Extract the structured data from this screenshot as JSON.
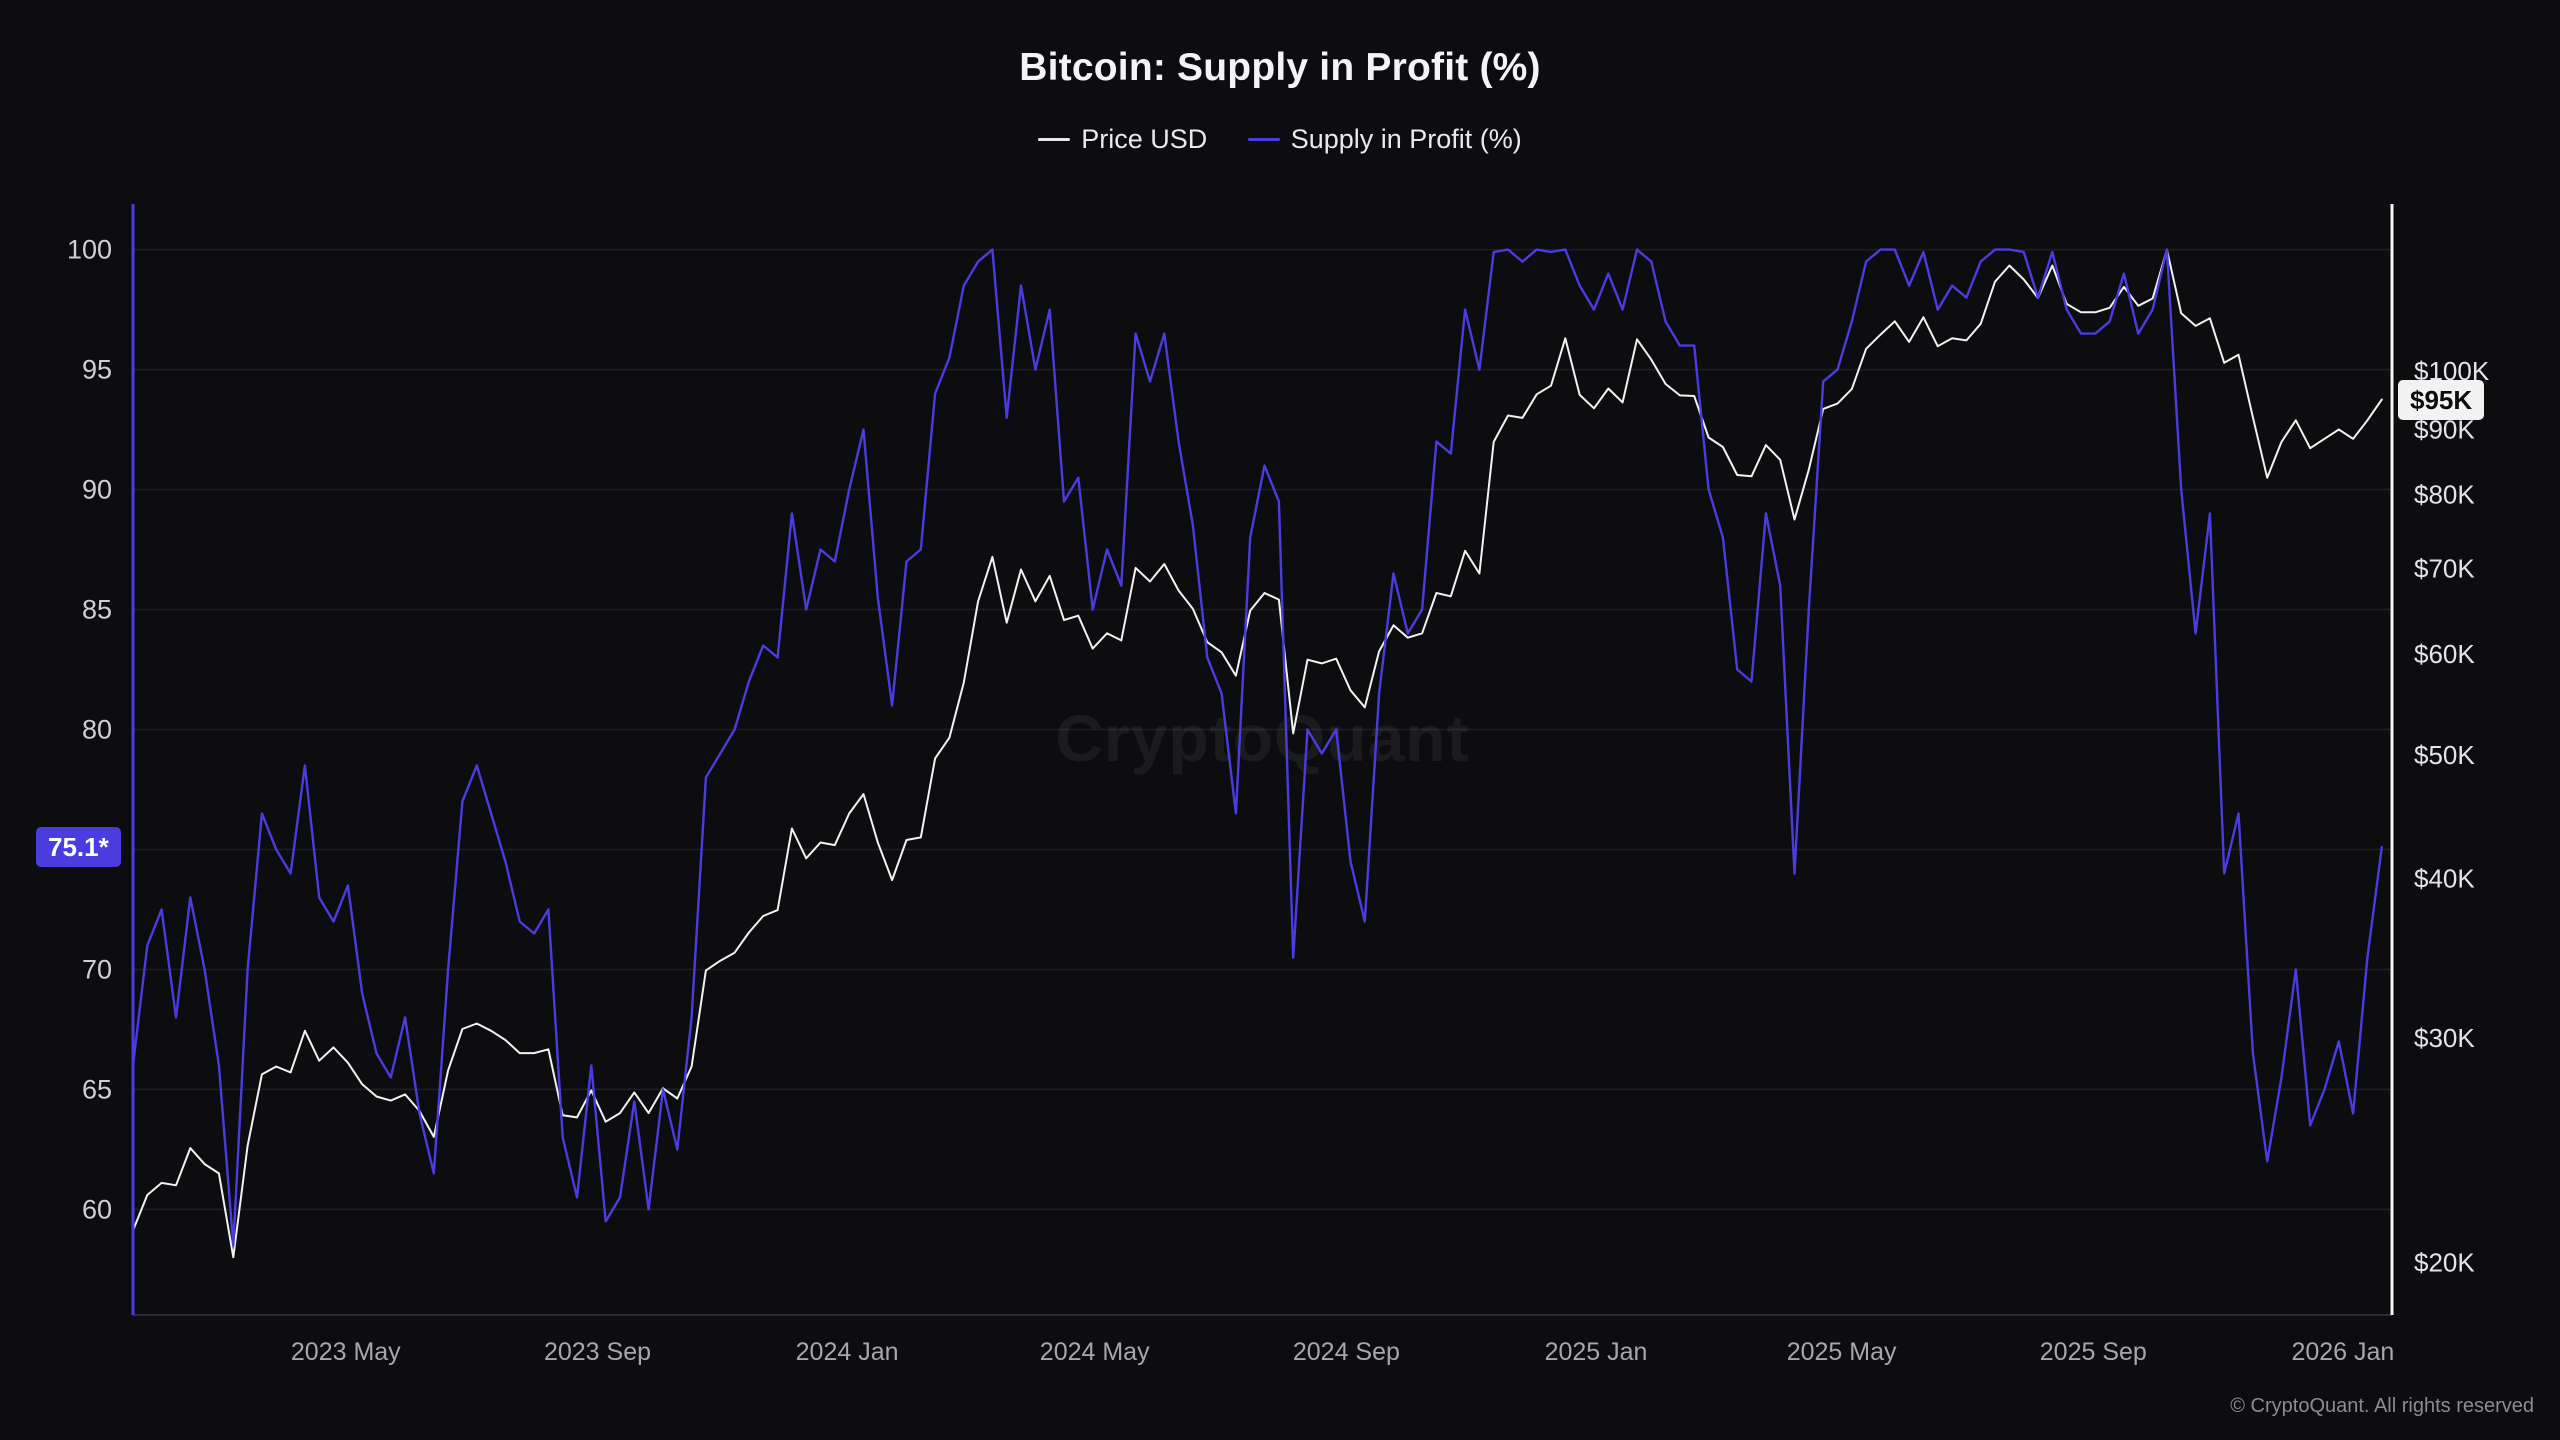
{
  "title": "Bitcoin: Supply in Profit (%)",
  "legend": {
    "items": [
      {
        "label": "Price USD",
        "color": "#e8e8ea"
      },
      {
        "label": "Supply in Profit (%)",
        "color": "#4b3ce0"
      }
    ]
  },
  "watermark": {
    "text": "CryptoQuant"
  },
  "footer": {
    "text": "© CryptoQuant. All rights reserved"
  },
  "colors": {
    "background": "#0d0d10",
    "price_line": "#f2f2f2",
    "supply_line": "#4b3ce0",
    "left_badge_bg": "#4b3ce0",
    "right_badge_bg": "#f2f2f2"
  },
  "chart_data": {
    "type": "line",
    "title": "Bitcoin: Supply in Profit (%)",
    "x_start_date": "2023-01-17",
    "x_end_date": "2026-01-25",
    "x_interval_days": 7,
    "x_ticks": [
      {
        "label": "2023 May",
        "date": "2023-05-01"
      },
      {
        "label": "2023 Sep",
        "date": "2023-09-01"
      },
      {
        "label": "2024 Jan",
        "date": "2024-01-01"
      },
      {
        "label": "2024 May",
        "date": "2024-05-01"
      },
      {
        "label": "2024 Sep",
        "date": "2024-09-01"
      },
      {
        "label": "2025 Jan",
        "date": "2025-01-01"
      },
      {
        "label": "2025 May",
        "date": "2025-05-01"
      },
      {
        "label": "2025 Sep",
        "date": "2025-09-01"
      },
      {
        "label": "2026 Jan",
        "date": "2026-01-01"
      }
    ],
    "left_axis": {
      "name": "Supply in Profit (%)",
      "ticks": [
        100,
        95,
        90,
        85,
        80,
        70,
        65,
        60
      ],
      "gridlines": [
        100,
        95,
        90,
        85,
        80,
        75,
        70,
        65,
        60
      ],
      "range": [
        55.6,
        101.9
      ],
      "current_value": 75.1,
      "current_label": "75.1*"
    },
    "right_axis": {
      "name": "Price USD",
      "scale": "log",
      "ticks_k": [
        20,
        30,
        40,
        50,
        60,
        70,
        80,
        90,
        100
      ],
      "tick_labels": [
        "$20K",
        "$30K",
        "$40K",
        "$50K",
        "$60K",
        "$70K",
        "$80K",
        "$90K",
        "$100K"
      ],
      "range_k": [
        18.2,
        135.2
      ],
      "current_value_k": 95,
      "current_label": "$95K"
    },
    "series": [
      {
        "name": "Price USD",
        "axis": "right",
        "unit": "USD thousands",
        "color": "#f2f2f2",
        "stroke_width": 2,
        "values": [
          21.2,
          22.6,
          23.1,
          23.0,
          24.6,
          23.9,
          23.5,
          20.2,
          24.7,
          28.1,
          28.5,
          28.2,
          30.4,
          28.8,
          29.5,
          28.7,
          27.6,
          27.0,
          26.8,
          27.1,
          26.3,
          25.1,
          28.3,
          30.5,
          30.8,
          30.4,
          29.9,
          29.2,
          29.2,
          29.4,
          26.1,
          26.0,
          27.3,
          25.8,
          26.2,
          27.2,
          26.2,
          27.4,
          26.9,
          28.5,
          33.9,
          34.5,
          35.0,
          36.3,
          37.4,
          37.8,
          43.8,
          41.5,
          42.7,
          42.5,
          45.0,
          46.6,
          42.7,
          39.9,
          42.9,
          43.1,
          49.7,
          51.6,
          57.0,
          66.0,
          71.5,
          63.5,
          69.9,
          66.0,
          69.1,
          63.8,
          64.3,
          60.6,
          62.3,
          61.5,
          70.1,
          68.4,
          70.6,
          67.3,
          65.1,
          61.3,
          60.2,
          57.7,
          64.9,
          67.0,
          66.2,
          52.0,
          59.4,
          59.0,
          59.5,
          56.2,
          54.5,
          60.3,
          63.2,
          61.8,
          62.3,
          67.0,
          66.6,
          72.3,
          69.4,
          88.0,
          92.3,
          91.9,
          95.9,
          97.4,
          106.1,
          95.8,
          93.5,
          96.9,
          94.5,
          105.9,
          102.1,
          97.7,
          95.7,
          95.6,
          88.7,
          87.2,
          82.9,
          82.7,
          87.5,
          85.2,
          76.5,
          83.7,
          93.4,
          94.3,
          96.8,
          104.1,
          106.8,
          109.4,
          105.4,
          110.2,
          104.6,
          106.1,
          105.7,
          108.9,
          117.5,
          121.0,
          118.0,
          114.1,
          121.0,
          112.9,
          111.2,
          111.2,
          112.1,
          116.4,
          112.5,
          114.0,
          124.5,
          111.0,
          108.5,
          110.0,
          101.5,
          103.0,
          92.0,
          82.5,
          88.0,
          91.5,
          87.0,
          88.5,
          90.0,
          88.5,
          91.5,
          95.0
        ]
      },
      {
        "name": "Supply in Profit (%)",
        "axis": "left",
        "unit": "%",
        "color": "#4b3ce0",
        "stroke_width": 2.4,
        "values": [
          66.0,
          71.0,
          72.5,
          68.0,
          73.0,
          70.0,
          66.0,
          58.5,
          70.0,
          76.5,
          75.0,
          74.0,
          78.5,
          73.0,
          72.0,
          73.5,
          69.0,
          66.5,
          65.5,
          68.0,
          64.0,
          61.5,
          70.0,
          77.0,
          78.5,
          76.5,
          74.5,
          72.0,
          71.5,
          72.5,
          63.0,
          60.5,
          66.0,
          59.5,
          60.5,
          64.5,
          60.0,
          65.0,
          62.5,
          68.0,
          78.0,
          79.0,
          80.0,
          82.0,
          83.5,
          83.0,
          89.0,
          85.0,
          87.5,
          87.0,
          90.0,
          92.5,
          85.5,
          81.0,
          87.0,
          87.5,
          94.0,
          95.5,
          98.5,
          99.5,
          100.0,
          93.0,
          98.5,
          95.0,
          97.5,
          89.5,
          90.5,
          85.0,
          87.5,
          86.0,
          96.5,
          94.5,
          96.5,
          92.0,
          88.5,
          83.0,
          81.5,
          76.5,
          88.0,
          91.0,
          89.5,
          70.5,
          80.0,
          79.0,
          80.0,
          74.5,
          72.0,
          81.5,
          86.5,
          84.0,
          85.0,
          92.0,
          91.5,
          97.5,
          95.0,
          99.9,
          100.0,
          99.5,
          100.0,
          99.9,
          100.0,
          98.5,
          97.5,
          99.0,
          97.5,
          100.0,
          99.5,
          97.0,
          96.0,
          96.0,
          90.0,
          88.0,
          82.5,
          82.0,
          89.0,
          86.0,
          74.0,
          85.0,
          94.5,
          95.0,
          97.0,
          99.5,
          100.0,
          100.0,
          98.5,
          99.9,
          97.5,
          98.5,
          98.0,
          99.5,
          100.0,
          100.0,
          99.9,
          98.0,
          99.9,
          97.5,
          96.5,
          96.5,
          97.0,
          99.0,
          96.5,
          97.5,
          100.0,
          90.0,
          84.0,
          89.0,
          74.0,
          76.5,
          66.5,
          62.0,
          65.5,
          70.0,
          63.5,
          65.0,
          67.0,
          64.0,
          70.5,
          75.1
        ]
      }
    ]
  }
}
